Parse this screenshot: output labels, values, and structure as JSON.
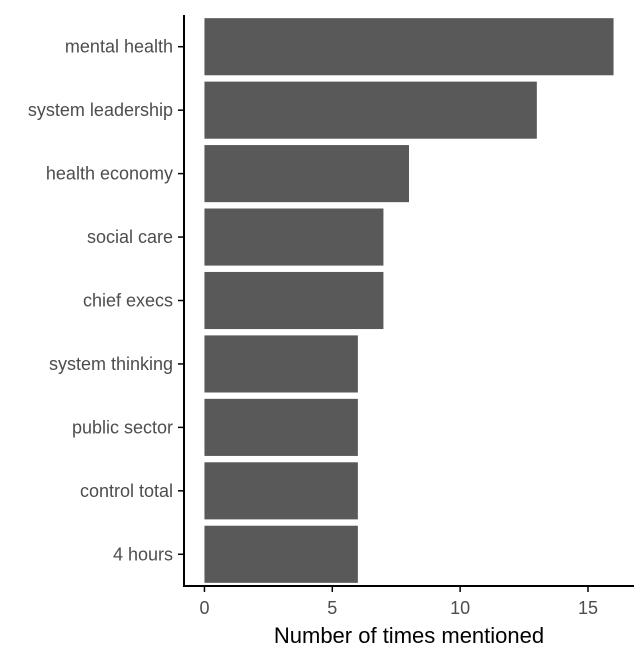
{
  "chart_data": {
    "type": "bar",
    "orientation": "horizontal",
    "categories": [
      "mental health",
      "system leadership",
      "health economy",
      "social care",
      "chief execs",
      "system thinking",
      "public sector",
      "control total",
      "4 hours"
    ],
    "values": [
      16,
      13,
      8,
      7,
      7,
      6,
      6,
      6,
      6
    ],
    "title": "",
    "xlabel": "Number of times mentioned",
    "ylabel": "",
    "xlim": [
      -0.8,
      16.8
    ],
    "xticks": [
      0,
      5,
      10,
      15
    ],
    "xtick_labels": [
      "0",
      "5",
      "10",
      "15"
    ],
    "grid": false,
    "legend": "none",
    "bar_color": "#595959",
    "axis_color": "#000000",
    "label_color": "#4d4d4d"
  }
}
